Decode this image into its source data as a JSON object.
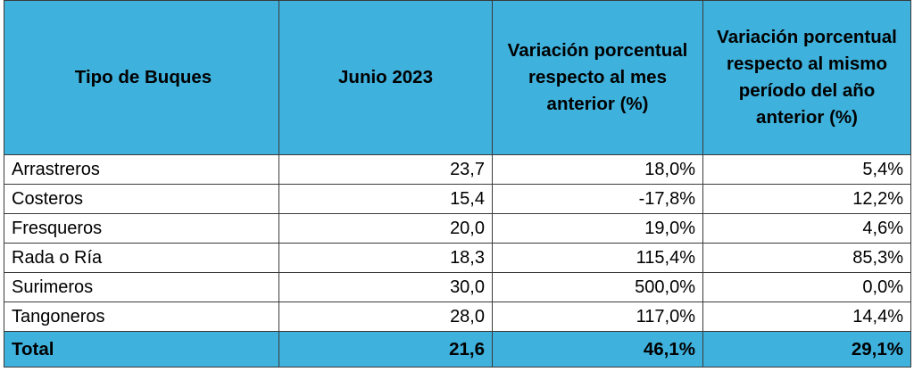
{
  "table": {
    "headers": [
      "Tipo de Buques",
      "Junio 2023",
      "Variación porcentual respecto al mes anterior (%)",
      "Variación porcentual respecto al mismo período del año anterior (%)"
    ],
    "rows": [
      {
        "tipo": "Arrastreros",
        "junio": "23,7",
        "var_mes": "18,0%",
        "var_anio": "5,4%"
      },
      {
        "tipo": "Costeros",
        "junio": "15,4",
        "var_mes": "-17,8%",
        "var_anio": "12,2%"
      },
      {
        "tipo": "Fresqueros",
        "junio": "20,0",
        "var_mes": "19,0%",
        "var_anio": "4,6%"
      },
      {
        "tipo": "Rada o Ría",
        "junio": "18,3",
        "var_mes": "115,4%",
        "var_anio": "85,3%"
      },
      {
        "tipo": "Surimeros",
        "junio": "30,0",
        "var_mes": "500,0%",
        "var_anio": "0,0%"
      },
      {
        "tipo": "Tangoneros",
        "junio": "28,0",
        "var_mes": "117,0%",
        "var_anio": "14,4%"
      }
    ],
    "total": {
      "tipo": "Total",
      "junio": "21,6",
      "var_mes": "46,1%",
      "var_anio": "29,1%"
    }
  },
  "colors": {
    "header_bg": "#3eb1dc",
    "total_bg": "#3eb1dc",
    "border": "#3a3a3a"
  }
}
